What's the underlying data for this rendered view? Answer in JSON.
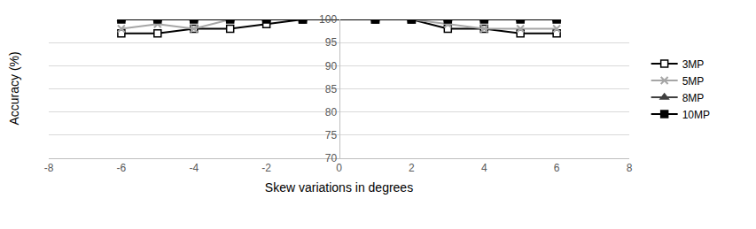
{
  "chart_data": {
    "type": "line",
    "x_label": "Skew variations in degrees",
    "y_label": "Accuracy (%)",
    "x": [
      -6,
      -5,
      -4,
      -3,
      -2,
      -1,
      1,
      2,
      3,
      4,
      5,
      6
    ],
    "series": [
      {
        "name": "3MP",
        "color": "#000000",
        "marker": "open_square",
        "line_style": "solid",
        "values": [
          97,
          97,
          98,
          98,
          99,
          100,
          100,
          100,
          98,
          98,
          97,
          97
        ]
      },
      {
        "name": "5MP",
        "color": "#a6a6a6",
        "marker": "x",
        "line_style": "solid",
        "values": [
          98,
          99,
          98,
          100,
          100,
          100,
          100,
          100,
          99,
          98,
          98,
          98
        ]
      },
      {
        "name": "8MP",
        "color": "#404040",
        "marker": "triangle",
        "line_style": "solid",
        "values": [
          100,
          100,
          100,
          100,
          100,
          100,
          100,
          100,
          100,
          100,
          100,
          100
        ]
      },
      {
        "name": "10MP",
        "color": "#000000",
        "marker": "square",
        "line_style": "solid",
        "values": [
          100,
          100,
          100,
          100,
          100,
          100,
          100,
          100,
          100,
          100,
          100,
          100
        ]
      }
    ],
    "xlim": [
      -8,
      8
    ],
    "xticks": [
      -8,
      -6,
      -4,
      -2,
      0,
      2,
      4,
      6,
      8
    ],
    "ylim": [
      70,
      100
    ],
    "yticks": [
      70,
      75,
      80,
      85,
      90,
      95,
      100
    ],
    "grid": true,
    "legend": "right"
  }
}
